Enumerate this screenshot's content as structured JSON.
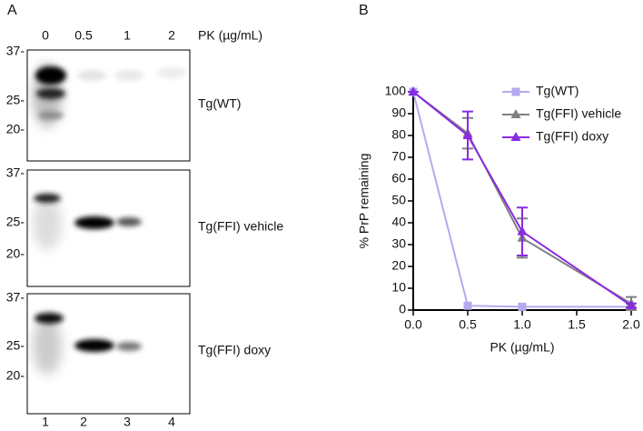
{
  "panel_a": {
    "label": "A",
    "lanes": [
      "0",
      "0.5",
      "1",
      "2"
    ],
    "pk_label": "PK (µg/mL)",
    "blots": [
      {
        "label": "Tg(WT)",
        "markers": [
          "37-",
          "25-",
          "20-"
        ]
      },
      {
        "label": "Tg(FFI) vehicle",
        "markers": [
          "37-",
          "25-",
          "20-"
        ]
      },
      {
        "label": "Tg(FFI) doxy",
        "markers": [
          "37-",
          "25-",
          "20-"
        ]
      }
    ],
    "lane_numbers": [
      "1",
      "2",
      "3",
      "4"
    ]
  },
  "panel_b": {
    "label": "B"
  },
  "chart_data": {
    "type": "line",
    "xlabel": "PK (µg/mL)",
    "ylabel": "% PrP remaining",
    "x": [
      0,
      0.5,
      1,
      2
    ],
    "xlim": [
      0,
      2
    ],
    "xticks": [
      {
        "value": 0,
        "label": "0.0"
      },
      {
        "value": 0.5,
        "label": "0.5"
      },
      {
        "value": 1,
        "label": "1.0"
      },
      {
        "value": 1.5,
        "label": "1.5"
      },
      {
        "value": 2,
        "label": "2.0"
      }
    ],
    "ylim": [
      0,
      100
    ],
    "yticks": [
      0,
      10,
      20,
      30,
      40,
      50,
      60,
      70,
      80,
      90,
      100
    ],
    "series": [
      {
        "name": "Tg(WT)",
        "color": "#b3aaf0",
        "marker": "square",
        "values": [
          100,
          2,
          1.5,
          1.5
        ]
      },
      {
        "name": "Tg(FFI) vehicle",
        "color": "#808080",
        "marker": "triangle",
        "values": [
          100,
          81,
          33,
          3
        ],
        "errors": [
          0,
          7,
          9,
          3
        ]
      },
      {
        "name": "Tg(FFI) doxy",
        "color": "#8a2be2",
        "marker": "triangle",
        "values": [
          100,
          80,
          36,
          2
        ],
        "errors": [
          0,
          11,
          11,
          1
        ]
      }
    ],
    "legend": "upper right"
  }
}
